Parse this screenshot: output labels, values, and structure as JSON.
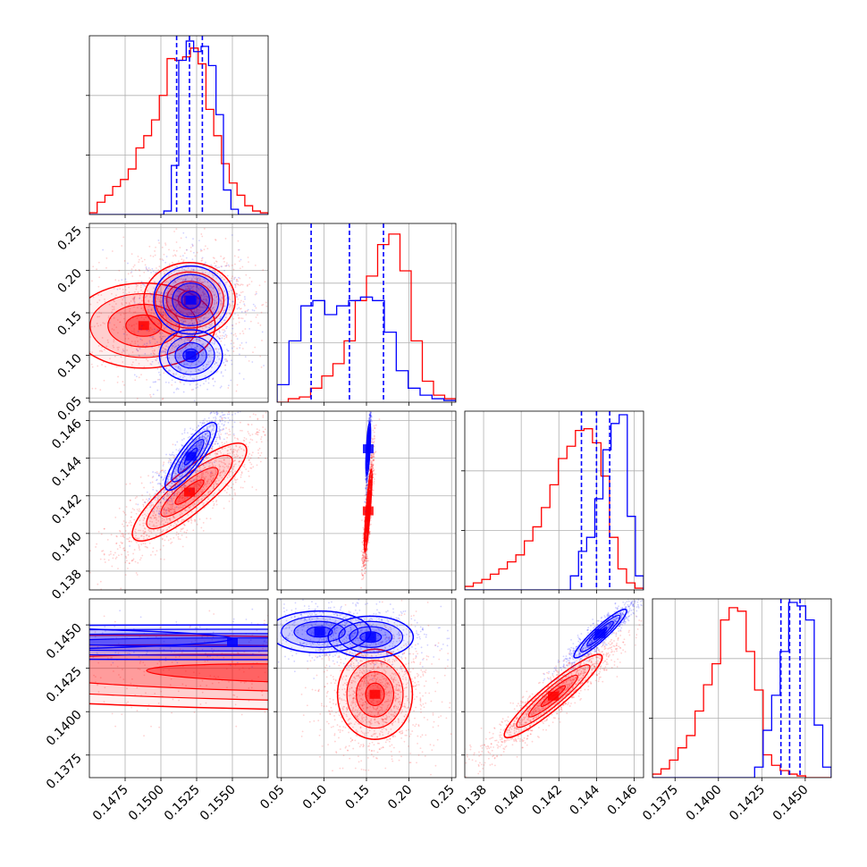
{
  "chart_data": {
    "type": "corner",
    "grid": true,
    "series": [
      {
        "name": "",
        "color": "#0000ff"
      },
      {
        "name": "",
        "color": "#ff0000"
      }
    ],
    "params": [
      {
        "range": [
          0.145,
          0.1575
        ],
        "ticks": [
          0.1475,
          0.15,
          0.1525,
          0.155
        ],
        "tick_labels": [
          "0.1475",
          "0.1500",
          "0.1525",
          "0.1550"
        ]
      },
      {
        "range": [
          0.045,
          0.255
        ],
        "ticks": [
          0.05,
          0.1,
          0.15,
          0.2,
          0.25
        ],
        "tick_labels": [
          "0.05",
          "0.10",
          "0.15",
          "0.20",
          "0.25"
        ]
      },
      {
        "range": [
          0.137,
          0.1465
        ],
        "ticks": [
          0.138,
          0.14,
          0.142,
          0.144,
          0.146
        ],
        "tick_labels": [
          "0.138",
          "0.140",
          "0.142",
          "0.144",
          "0.146"
        ]
      },
      {
        "range": [
          0.1362,
          0.1465
        ],
        "ticks": [
          0.1375,
          0.14,
          0.1425,
          0.145
        ],
        "tick_labels": [
          "0.1375",
          "0.1400",
          "0.1425",
          "0.1450"
        ]
      }
    ],
    "quantiles": {
      "blue": [
        [
          0.1511,
          0.152,
          0.1529
        ],
        [
          0.085,
          0.13,
          0.17
        ],
        [
          0.1432,
          0.144,
          0.1447
        ],
        [
          0.1436,
          0.1441,
          0.1447
        ]
      ]
    },
    "histograms": {
      "blue": [
        [
          0,
          0,
          0,
          0,
          0,
          0,
          0,
          0,
          0,
          0,
          0.02,
          0.28,
          0.88,
          0.99,
          0.93,
          0.96,
          0.85,
          0.57,
          0.14,
          0.03,
          0,
          0,
          0,
          0
        ],
        [
          0.1,
          0.35,
          0.55,
          0.58,
          0.5,
          0.55,
          0.58,
          0.6,
          0.58,
          0.4,
          0.18,
          0.08,
          0.04,
          0.02,
          0.01
        ],
        [
          0,
          0,
          0,
          0,
          0,
          0,
          0,
          0,
          0,
          0,
          0,
          0,
          0,
          0.08,
          0.22,
          0.3,
          0.52,
          0.8,
          0.95,
          1.0,
          0.42,
          0.08
        ],
        [
          0,
          0,
          0,
          0,
          0,
          0,
          0,
          0,
          0,
          0,
          0,
          0,
          0.06,
          0.27,
          0.47,
          0.72,
          1.0,
          0.98,
          0.9,
          0.3,
          0.06
        ]
      ],
      "red": [
        [
          0.01,
          0.07,
          0.11,
          0.16,
          0.2,
          0.26,
          0.38,
          0.45,
          0.54,
          0.68,
          0.89,
          0.88,
          0.9,
          0.95,
          0.86,
          0.6,
          0.45,
          0.29,
          0.18,
          0.11,
          0.05,
          0.02,
          0.01
        ],
        [
          0,
          0.02,
          0.03,
          0.08,
          0.15,
          0.22,
          0.35,
          0.58,
          0.72,
          0.9,
          0.96,
          0.75,
          0.35,
          0.12,
          0.04,
          0.02
        ],
        [
          0.02,
          0.04,
          0.06,
          0.09,
          0.12,
          0.16,
          0.2,
          0.28,
          0.36,
          0.47,
          0.6,
          0.75,
          0.82,
          0.91,
          0.92,
          0.84,
          0.65,
          0.3,
          0.12,
          0.04,
          0.01
        ],
        [
          0.02,
          0.05,
          0.1,
          0.17,
          0.24,
          0.38,
          0.53,
          0.65,
          0.9,
          0.97,
          0.95,
          0.72,
          0.5,
          0.13,
          0.07,
          0.04,
          0.02,
          0.01,
          0,
          0,
          0
        ]
      ]
    },
    "modes2d": {
      "blue": [
        [
          [
            0.1521,
            0.165,
            0.0013,
            0.02,
            0.0,
            0.55
          ],
          [
            0.1521,
            0.1,
            0.0011,
            0.015,
            0.0,
            0.45
          ]
        ],
        [
          [
            0.1521,
            0.1441,
            0.0009,
            0.0009,
            0.85,
            1.0
          ]
        ],
        [
          [
            0.1521,
            0.1445,
            0.001,
            0.0007,
            0.85,
            1.0
          ]
        ],
        [
          [
            0.095,
            0.1442,
            0.03,
            0.0005,
            0.0,
            0.55
          ],
          [
            0.155,
            0.144,
            0.025,
            0.0005,
            0.0,
            0.45
          ]
        ],
        [
          [
            0.095,
            0.1446,
            0.03,
            0.0006,
            0.0,
            0.55
          ],
          [
            0.155,
            0.1443,
            0.025,
            0.0006,
            0.0,
            0.45
          ]
        ],
        [
          [
            0.1442,
            0.1445,
            0.0007,
            0.0007,
            0.93,
            1.0
          ]
        ]
      ],
      "red": [
        [
          [
            0.152,
            0.165,
            0.0016,
            0.022,
            0.0,
            0.65
          ],
          [
            0.1488,
            0.135,
            0.0025,
            0.025,
            0.0,
            0.35
          ]
        ],
        [
          [
            0.152,
            0.1422,
            0.002,
            0.0013,
            0.85,
            1.0
          ]
        ],
        [
          [
            0.152,
            0.1412,
            0.0022,
            0.0011,
            0.85,
            1.0
          ]
        ],
        [
          [
            0.16,
            0.1422,
            0.022,
            0.0011,
            -0.3,
            1.0
          ]
        ],
        [
          [
            0.16,
            0.141,
            0.022,
            0.0013,
            0.0,
            1.0
          ]
        ],
        [
          [
            0.1417,
            0.1409,
            0.0013,
            0.0012,
            0.93,
            1.0
          ]
        ]
      ]
    }
  }
}
